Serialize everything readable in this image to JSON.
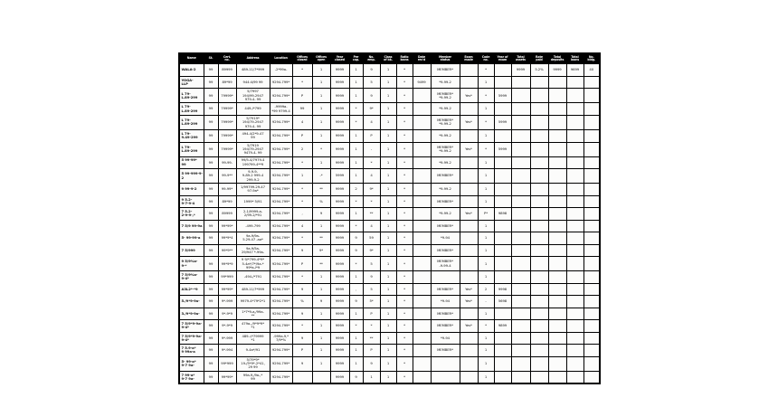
{
  "page": {
    "background": "#ffffff"
  },
  "table": {
    "border_color": "#000000",
    "header_bg": "#000000",
    "header_text_color": "#ffffff",
    "cell_bg": "#fcfcfb",
    "columns": [
      {
        "label": "Name"
      },
      {
        "label": "St."
      },
      {
        "label": "Cert.\nno."
      },
      {
        "label": "Address"
      },
      {
        "label": "Location"
      },
      {
        "label": "Offices\nclosed"
      },
      {
        "label": "Offices\nopen"
      },
      {
        "label": "Year\nclosed"
      },
      {
        "label": "Per\ncap."
      },
      {
        "label": "No.\nemp."
      },
      {
        "label": "Class\nof bk."
      },
      {
        "label": "Ratio\nloans"
      },
      {
        "label": "Date\nrec'd"
      },
      {
        "label": "Member\nstatus"
      },
      {
        "label": "Exam\nmade"
      },
      {
        "label": "Code\nno."
      },
      {
        "label": "Year of\nexam"
      },
      {
        "label": "Total\nassets"
      },
      {
        "label": "Rate\npaid"
      },
      {
        "label": "Total\ndeposits"
      },
      {
        "label": "Total\nloans"
      },
      {
        "label": "No.\nbldg."
      }
    ],
    "rows": [
      [
        "WALA-2",
        "99",
        "89999",
        "489-11/7*999",
        "-2*99a-",
        "*",
        "1",
        "9999",
        "1",
        "9",
        "1",
        "*",
        "",
        "MEMBER*",
        "",
        "*",
        "",
        "9999",
        "5.2%",
        "9999",
        "9699",
        "40"
      ],
      [
        "YOGA-\nLLP",
        "99",
        "89*99",
        "944:4/99 99",
        "9294-799*",
        "*",
        "1",
        "9999",
        "1",
        "5",
        "1",
        "*",
        "9499",
        "*9-99-2",
        "",
        "1",
        "",
        "",
        "",
        "",
        "",
        ""
      ],
      [
        "L 79-\nL.89-299",
        "99",
        "79999*",
        "5/7997\n194/99-2947\n979-4- 99",
        "9294-799*",
        "P",
        "1",
        "9999",
        "1",
        "9",
        "1",
        "*",
        "",
        "MEMBER*\n*9-99-2",
        "Yes*",
        "*",
        "5999",
        "",
        "",
        "",
        "",
        ""
      ],
      [
        "L 79-\nL.89-299",
        "99",
        "79999*",
        "449-/*799",
        "-9999a-\n*99 9799-4",
        "99",
        "1",
        "9999",
        "*",
        "9*",
        "1",
        "*",
        "",
        "*9-99-2",
        "",
        "1",
        "",
        "",
        "",
        "",
        "",
        ""
      ],
      [
        "L 79-\nL.89-299",
        "99",
        "79999*",
        "5/7919*\n194/79-2947\n979-4- 99",
        "9294-799*",
        "4",
        "1",
        "9999",
        "*",
        "4",
        "1",
        "*",
        "",
        "MEMBER*\n*9-99-2",
        "Yes*",
        "*",
        "5999",
        "",
        "",
        "",
        "",
        ""
      ],
      [
        "L 79-\n9.49-299",
        "99",
        "79999*",
        "494-4/2*9-47\n99",
        "9294-799*",
        "P",
        "1",
        "9999",
        "1",
        "P",
        "1",
        "*",
        "",
        "*9-99-2",
        "",
        "1",
        "",
        "",
        "",
        "",
        "",
        ""
      ],
      [
        "L 79-\nL.89-299",
        "99",
        "79999*",
        "5/7919\n194/79-2947\n9479-4- 99",
        "9294-799*",
        "2",
        "*",
        "9999",
        "1",
        "-",
        "1",
        "*",
        "",
        "MEMBER*\n*9-99-2",
        "Yes*",
        "*",
        "5999",
        "",
        "",
        "",
        "",
        ""
      ],
      [
        "5 99-99*\n99",
        "99",
        "99-99-",
        "99/5-4/7979-4\n199799-4**9",
        "9294-799*",
        "*",
        "1",
        "9999",
        "1",
        "*",
        "1",
        "*",
        "",
        "*9-99-2",
        "",
        "1",
        "",
        "",
        "",
        "",
        "",
        ""
      ],
      [
        "5 99-999-9-2",
        "99",
        "99-9**",
        "9-9-9-\n9-89-2 999-4\n299-9-2",
        "9294-799*",
        "1",
        "-*",
        "5999",
        "1",
        "4",
        "1",
        "*",
        "",
        "MEMBER*",
        "",
        "1",
        "",
        "",
        "",
        "",
        "",
        ""
      ],
      [
        "9 99-9-2",
        "99",
        "99-99*",
        "1/99799-29-47\n97-9a*",
        "9294-799*",
        "*",
        "**",
        "9999",
        "2",
        "9*",
        "1",
        "*",
        "",
        "*9-99-2",
        "",
        "1",
        "",
        "",
        "",
        "",
        "",
        ""
      ],
      [
        "9 5.2-\n9-7-9-4",
        "99",
        "89*99",
        "1999* 5/91",
        "9294-799*",
        "*",
        "%",
        "9999",
        "*",
        "*",
        "1",
        "*",
        "",
        "MEMBER*",
        "",
        "1",
        "",
        "",
        "",
        "",
        "",
        ""
      ],
      [
        "7 5.2-\n2-9-9-,*",
        "99",
        "89999",
        "2-1/9999-a-\n2/99-2/*91",
        "9294-799*",
        ",",
        "9",
        "9999",
        "1",
        "**",
        "1",
        "*",
        "",
        "*9-99-2",
        "Yes*",
        "P*",
        "9898",
        "",
        "",
        "",
        "",
        ""
      ],
      [
        "7 5/9 99-9a",
        "99",
        "99*99*",
        "-499-799",
        "9294-799*",
        "4",
        "1",
        "9999",
        "*",
        "4",
        "1",
        "*",
        "",
        "MEMBER*",
        "",
        "1",
        "",
        "",
        "",
        "",
        "",
        ""
      ],
      [
        "5- 99-99-a",
        "99",
        "99*9*4",
        "9a-9/9a-\n5.29-47 -aa*",
        "9294-799*",
        "*",
        "**",
        "9999",
        "9",
        "59",
        "1",
        "*",
        "",
        "*9-94",
        "",
        "1",
        "",
        "",
        "",
        "",
        "",
        ""
      ],
      [
        "7 5/999",
        "99",
        "99*9**",
        "9a-9/5a-\n29/947 *-99a-",
        "9294-799*",
        "9",
        "9*",
        "9999",
        "9",
        "9*",
        "1",
        "*",
        "",
        "MEMBER*",
        "",
        "1",
        "",
        "",
        "",
        "",
        "",
        ""
      ],
      [
        "9 5/9%a-\n9-*",
        "99",
        "99*9*9",
        "9 9/*799-4*9*\n5-4a*/7*/9a-*\n99*a-/*9",
        "9294-799*",
        "P",
        "**",
        "9999",
        "*",
        "5",
        "1",
        "*",
        "",
        "MEMBER*\n-9-99-4",
        "",
        "1",
        "",
        "",
        "",
        "",
        "",
        ""
      ],
      [
        "7 5/9%a-\n9-4*",
        "99",
        "99*999",
        "-494-/*791",
        "9294-799*",
        "*",
        "1",
        "9999",
        "1",
        "9",
        "1",
        "*",
        "",
        "",
        "",
        "1",
        "",
        "",
        "",
        "",
        "",
        ""
      ],
      [
        "A3L2*-*9",
        "99",
        "99*99*",
        "489-11/7*999",
        "9294-799*",
        "9",
        "1",
        "9999",
        ",",
        "5",
        "1",
        "*",
        "",
        "MEMBER*",
        "Yes*",
        "2",
        "9998",
        "",
        "",
        "",
        "",
        ""
      ],
      [
        "5./9*9-9a-",
        "99",
        "9*-999",
        "9979-4*79*2*1",
        "9294-799*",
        "%",
        "9",
        "9999",
        "9",
        "5*",
        "1",
        "*",
        "",
        "*9-94",
        "Yes*",
        "-",
        "5698",
        "",
        "",
        "",
        "",
        ""
      ],
      [
        "3./9*9-9a-",
        "99",
        "9*-9*9",
        "1*7*9-a,/99a-\n**",
        "9294-799*",
        "9",
        "1",
        "9999",
        "1",
        "P",
        "1",
        "*",
        "",
        "MEMBER*",
        "",
        "1",
        "",
        "",
        "",
        "",
        "",
        ""
      ],
      [
        "7 5/9*9-9a-\n9-4*",
        "99",
        "9*-9*9",
        "479a-,/9*9*9*\n*1",
        "9294-799*",
        "*",
        "1",
        "9999",
        "*",
        "*",
        "1",
        "*",
        "",
        "MEMBER*",
        "Yes*",
        "*",
        "9899",
        "",
        "",
        "",
        "",
        ""
      ],
      [
        "7 5/9*9-9a-\n9-4*",
        "99",
        "9*-999",
        "489-:/*79999\n*1",
        "-999a-9,*\n7/9*%",
        "9",
        "1",
        "9999",
        "1",
        "**",
        "1",
        "*",
        "",
        "*9-94",
        "",
        "1",
        "",
        "",
        "",
        "",
        "",
        ""
      ],
      [
        "7 5.9-a*\n9 99a-a",
        "99",
        "9*-994",
        "9-4a*/91",
        "9294-799*",
        "P",
        "1",
        "9999",
        "1",
        "P",
        "1",
        "*",
        "",
        "MEMBER*",
        "",
        "1",
        "",
        "",
        "",
        "",
        "",
        ""
      ],
      [
        "5- 99-a*\n9-7 9a-",
        "99",
        "99*999",
        "5/79*9*\n19-/5*9*-2*41,\n29 99",
        "9294-799*",
        "9",
        "1",
        "9999",
        "1",
        "9",
        "1",
        "*",
        "",
        "",
        "",
        "1",
        "",
        "",
        "",
        "",
        "",
        ""
      ],
      [
        "7 99-a*\n9-7 9a-",
        "99",
        "99*99*",
        "99a-9,/9a-,*\n99",
        "9294-799*",
        "",
        "",
        "9999",
        "9",
        "1",
        "1",
        "*",
        "",
        "",
        "",
        "1",
        "",
        "",
        "",
        "",
        "",
        ""
      ]
    ]
  }
}
